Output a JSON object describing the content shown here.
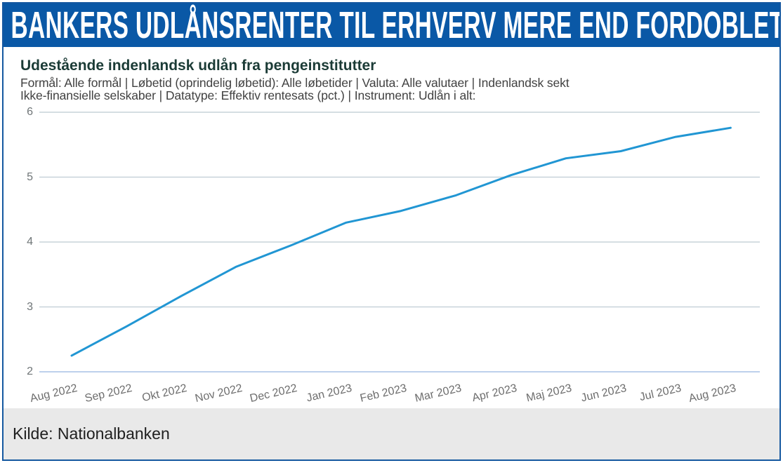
{
  "banner": {
    "title": "BANKERS UDLÅNSRENTER TIL ERHVERV MERE END FORDOBLET"
  },
  "chart": {
    "title": "Udestående indenlandsk udlån fra pengeinstitutter",
    "subtitle_line1": "Formål: Alle formål | Løbetid (oprindelig løbetid): Alle løbetider | Valuta: Alle valutaer | Indenlandsk sekt",
    "subtitle_line2": "Ikke-finansielle selskaber | Datatype: Effektiv rentesats (pct.) | Instrument: Udlån i alt:"
  },
  "footer": {
    "source": "Kilde: Nationalbanken"
  },
  "colors": {
    "banner_bg": "#0a58a6",
    "border": "#1558a0",
    "line": "#2196d3",
    "grid": "#c7d3d9",
    "axis_bottom": "#bdd0ec",
    "title_text": "#1b3b36",
    "footer_bg": "#e9e9e9"
  },
  "chart_data": {
    "type": "line",
    "title": "Udestående indenlandsk udlån fra pengeinstitutter",
    "x": [
      "Aug 2022",
      "Sep 2022",
      "Okt 2022",
      "Nov 2022",
      "Dec 2022",
      "Jan 2023",
      "Feb 2023",
      "Mar 2023",
      "Apr 2023",
      "Maj 2023",
      "Jun 2023",
      "Jul 2023",
      "Aug 2023"
    ],
    "series": [
      {
        "name": "Effektiv rentesats (pct.)",
        "values": [
          2.25,
          2.7,
          3.17,
          3.62,
          3.95,
          4.3,
          4.48,
          4.72,
          5.03,
          5.29,
          5.4,
          5.62,
          5.76
        ]
      }
    ],
    "xlabel": "",
    "ylabel": "",
    "ylim": [
      2,
      6
    ],
    "yticks": [
      2,
      3,
      4,
      5,
      6
    ],
    "grid": true,
    "legend": false
  }
}
